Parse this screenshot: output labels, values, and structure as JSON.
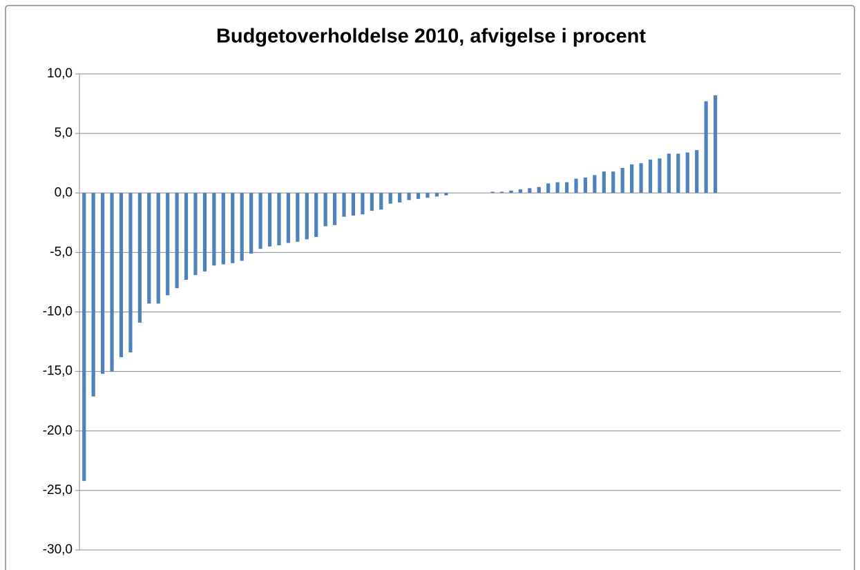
{
  "chart_data": {
    "type": "bar",
    "title": "Budgetoverholdelse 2010, afvigelse i procent",
    "categories": [
      null,
      null,
      null,
      null,
      null,
      null,
      null,
      null,
      null,
      null,
      null,
      null,
      null,
      null,
      null,
      null,
      null,
      null,
      null,
      null,
      null,
      null,
      null,
      null,
      null,
      null,
      null,
      null,
      null,
      null,
      null,
      null,
      null,
      null,
      null,
      null,
      null,
      null,
      null,
      null,
      null,
      null,
      null,
      null,
      null,
      null,
      null,
      null,
      null,
      null,
      null,
      null,
      null,
      null,
      null,
      null,
      null,
      null,
      null,
      null,
      null,
      null,
      null,
      null,
      null,
      null,
      null,
      null,
      null,
      null,
      null,
      null,
      null,
      null,
      null,
      null,
      null,
      null,
      null,
      null,
      null,
      null
    ],
    "values": [
      -24.2,
      -17.1,
      -15.2,
      -15.0,
      -13.8,
      -13.4,
      -10.9,
      -9.3,
      -9.3,
      -8.6,
      -8.0,
      -7.3,
      -6.9,
      -6.6,
      -6.1,
      -6.0,
      -5.9,
      -5.7,
      -5.1,
      -4.7,
      -4.5,
      -4.4,
      -4.2,
      -4.1,
      -3.9,
      -3.7,
      -2.8,
      -2.7,
      -2.0,
      -1.9,
      -1.8,
      -1.5,
      -1.4,
      -0.9,
      -0.8,
      -0.6,
      -0.5,
      -0.4,
      -0.3,
      -0.2,
      0.0,
      0.0,
      0.0,
      0.0,
      0.1,
      0.1,
      0.2,
      0.3,
      0.4,
      0.5,
      0.8,
      0.9,
      0.9,
      1.2,
      1.3,
      1.5,
      1.8,
      1.8,
      2.1,
      2.4,
      2.5,
      2.8,
      2.9,
      3.3,
      3.3,
      3.4,
      3.6,
      7.7,
      8.2,
      null,
      null,
      null,
      null,
      null,
      null,
      null,
      null,
      null,
      null,
      null,
      null,
      null
    ],
    "color": "#4f81bd",
    "ylim": [
      -30,
      10
    ],
    "yticks": [
      {
        "value": -30,
        "label": "-30,0"
      },
      {
        "value": -25,
        "label": "-25,0"
      },
      {
        "value": -20,
        "label": "-20,0"
      },
      {
        "value": -15,
        "label": "-15,0"
      },
      {
        "value": -10,
        "label": "-10,0"
      },
      {
        "value": -5,
        "label": "-5,0"
      },
      {
        "value": 0,
        "label": "0,0"
      },
      {
        "value": 5,
        "label": "5,0"
      },
      {
        "value": 10,
        "label": "10,0"
      }
    ],
    "grid": true
  }
}
